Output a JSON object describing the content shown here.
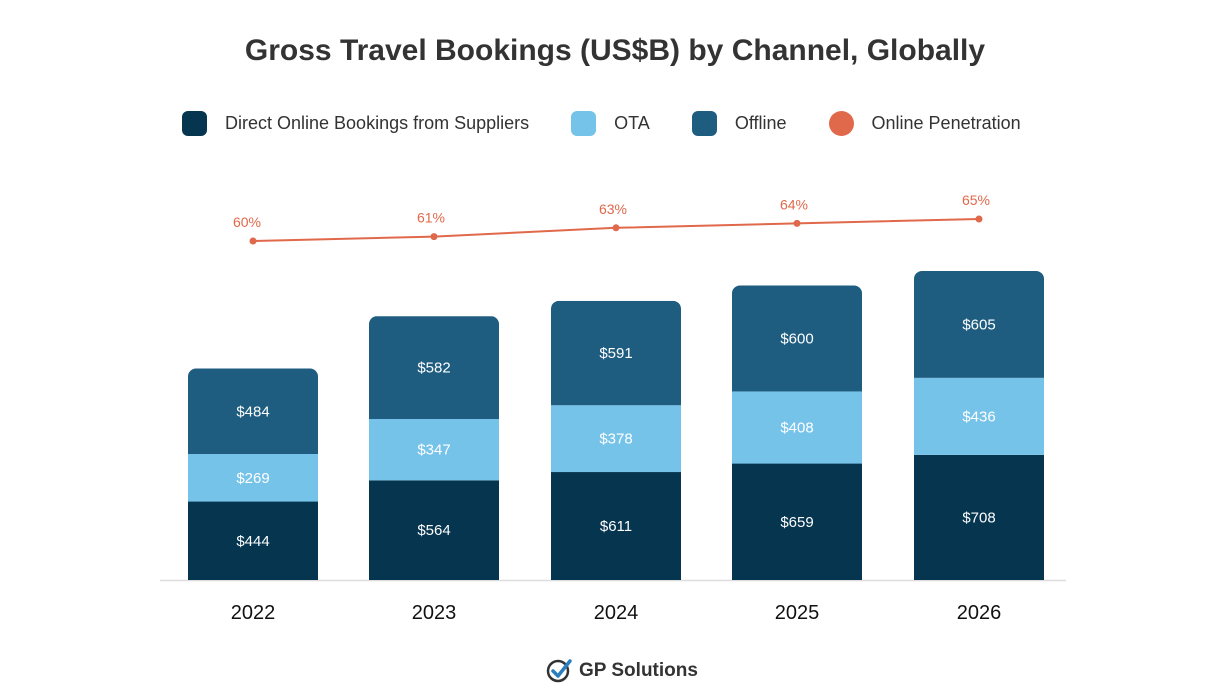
{
  "chart_data": {
    "type": "bar",
    "stacked": true,
    "title": "Gross Travel Bookings (US$B) by Channel, Globally",
    "categories": [
      "2022",
      "2023",
      "2024",
      "2025",
      "2026"
    ],
    "series": [
      {
        "name": "Direct Online Bookings from Suppliers",
        "color": "#05354f",
        "values": [
          444,
          564,
          611,
          659,
          708
        ],
        "labels": [
          "$444",
          "$564",
          "$611",
          "$659",
          "$708"
        ]
      },
      {
        "name": "OTA",
        "color": "#76c3ea",
        "values": [
          269,
          347,
          378,
          408,
          436
        ],
        "labels": [
          "$269",
          "$347",
          "$378",
          "$408",
          "$436"
        ]
      },
      {
        "name": "Offline",
        "color": "#1f5d80",
        "values": [
          484,
          582,
          591,
          600,
          605
        ],
        "labels": [
          "$484",
          "$582",
          "$591",
          "$600",
          "$605"
        ]
      }
    ],
    "line_series": {
      "name": "Online Penetration",
      "color": "#e0684b",
      "values": [
        60,
        61,
        63,
        64,
        65
      ],
      "labels": [
        "60%",
        "61%",
        "63%",
        "64%",
        "65%"
      ]
    },
    "legend_position": "top",
    "grid": false
  },
  "logo": {
    "text": "GP Solutions",
    "check_color": "#1f5d80"
  }
}
